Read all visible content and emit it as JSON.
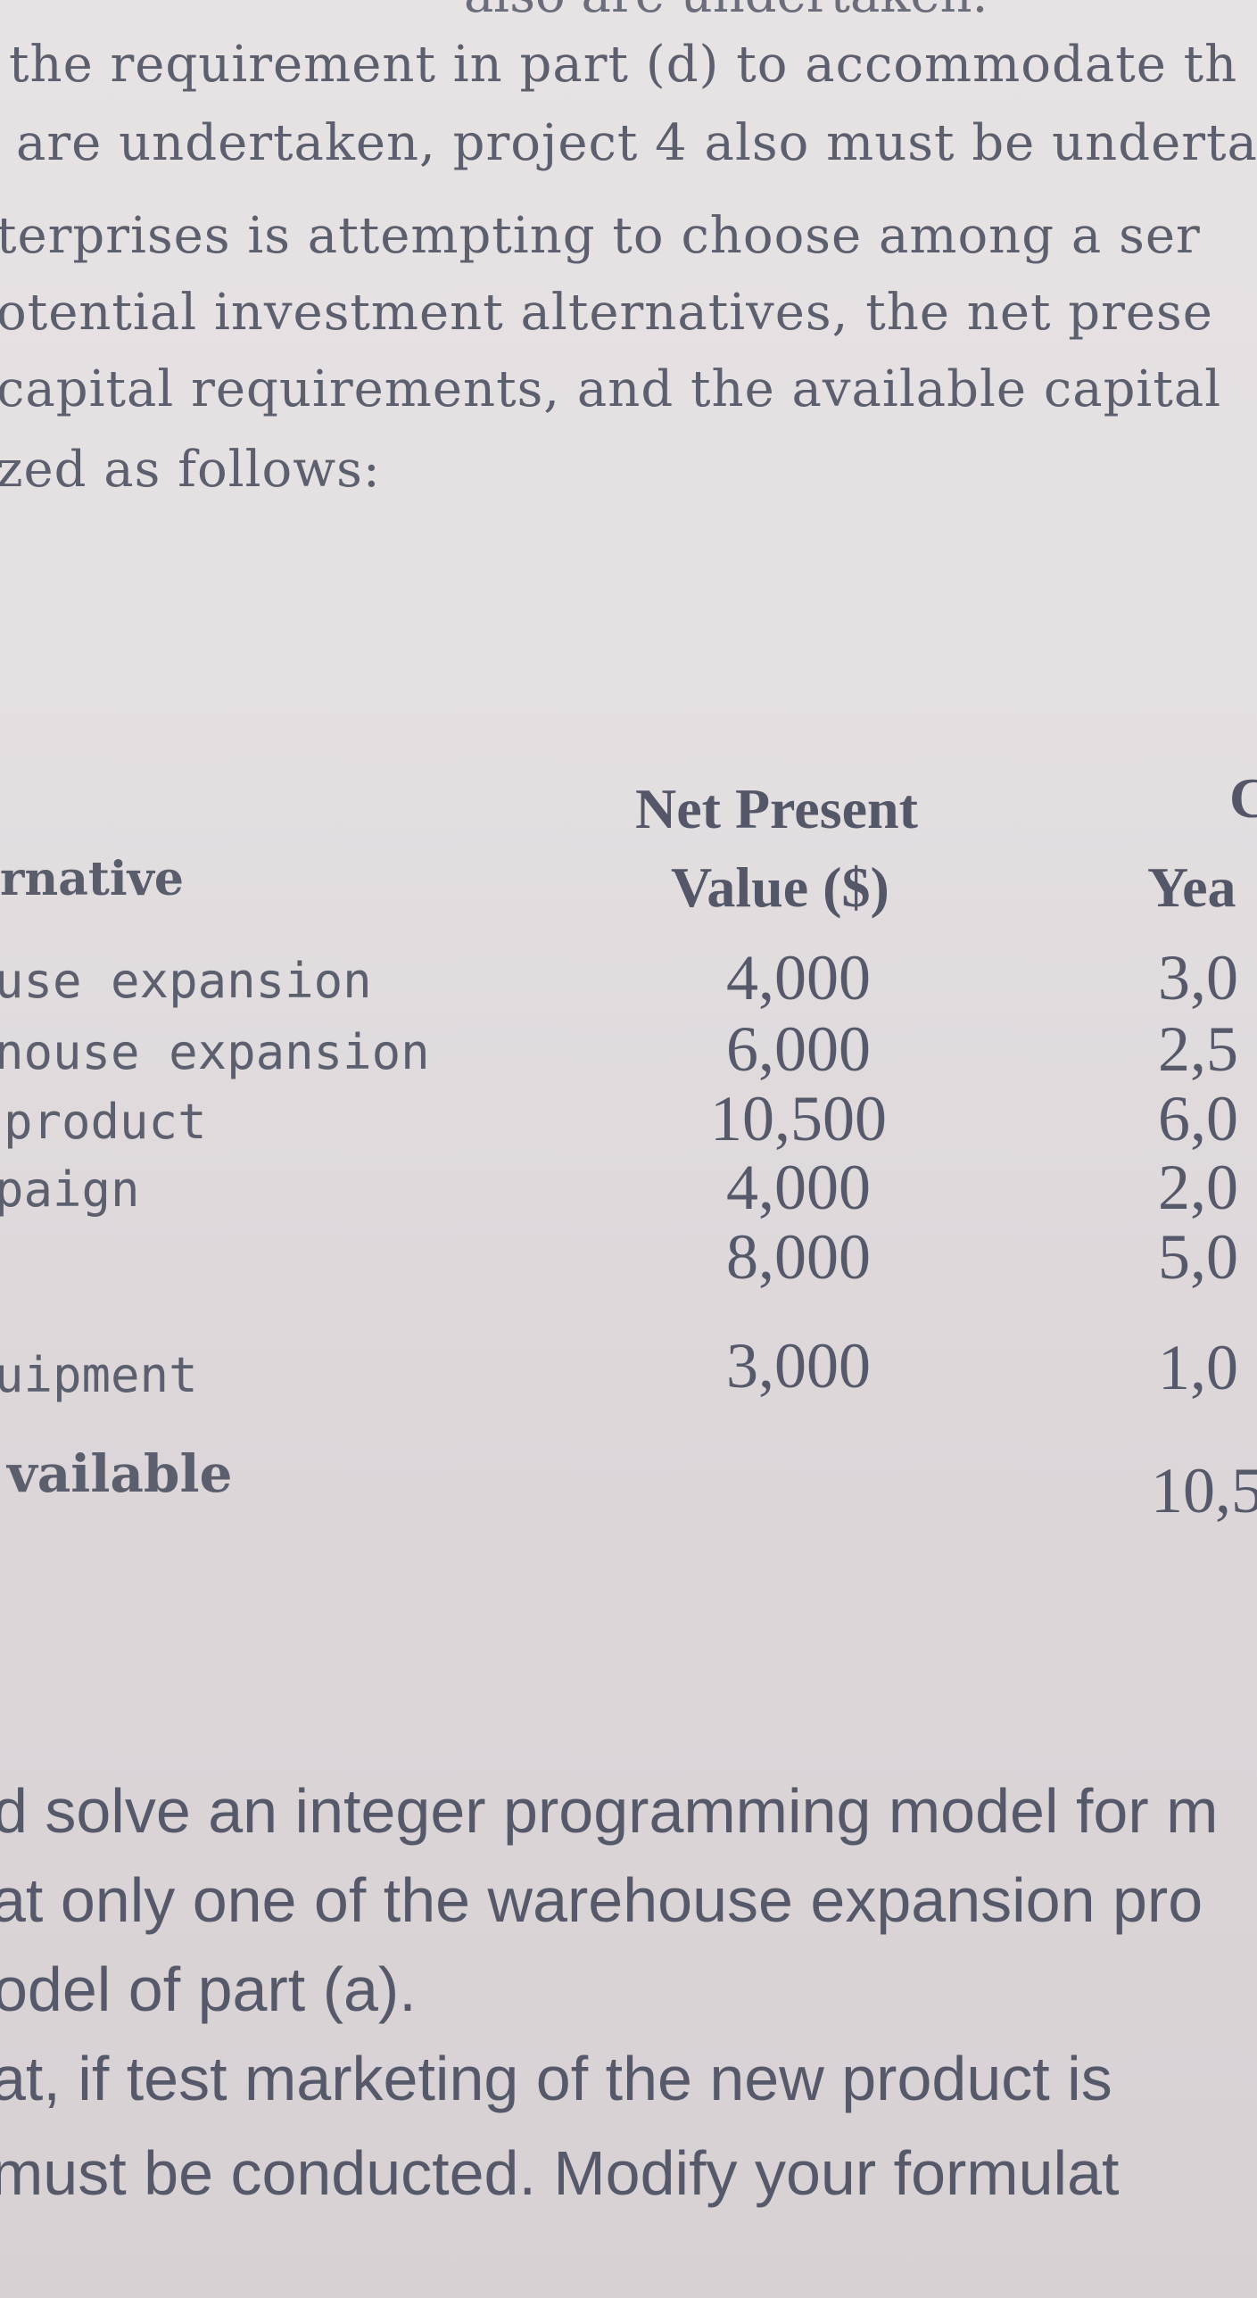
{
  "top_text": {
    "cut_line": "also are undertaken.",
    "lines": [
      "the requirement in part (d) to accommodate th",
      "are undertaken, project 4 also must be underta",
      "terprises is attempting to choose among a ser",
      "otential investment alternatives, the net prese",
      "capital requirements, and the available capital",
      "zed as follows:"
    ]
  },
  "table": {
    "col_alternative": "rnative",
    "col_npv_line1": "Net Present",
    "col_npv_line2": "Value ($)",
    "col_cap_top": "C",
    "col_year": "Yea",
    "rows": [
      {
        "label": "use expansion",
        "npv": "4,000",
        "year": "3,0"
      },
      {
        "label": "nouse expansion",
        "npv": "6,000",
        "year": "2,5"
      },
      {
        "label": "product",
        "npv": "10,500",
        "year": "6,0"
      },
      {
        "label": "paign",
        "npv": "4,000",
        "year": "2,0"
      },
      {
        "label": "",
        "npv": "8,000",
        "year": "5,0"
      },
      {
        "label": "uipment",
        "npv": "3,000",
        "year": "1,0"
      }
    ],
    "available_label": "vailable",
    "available_year": "10,5"
  },
  "bottom_text": {
    "lines": [
      "d solve an integer programming model for m",
      "at only one of the warehouse expansion pro",
      "odel of part (a).",
      "at, if test marketing of the new product is",
      "must be conducted. Modify your formulat"
    ]
  }
}
